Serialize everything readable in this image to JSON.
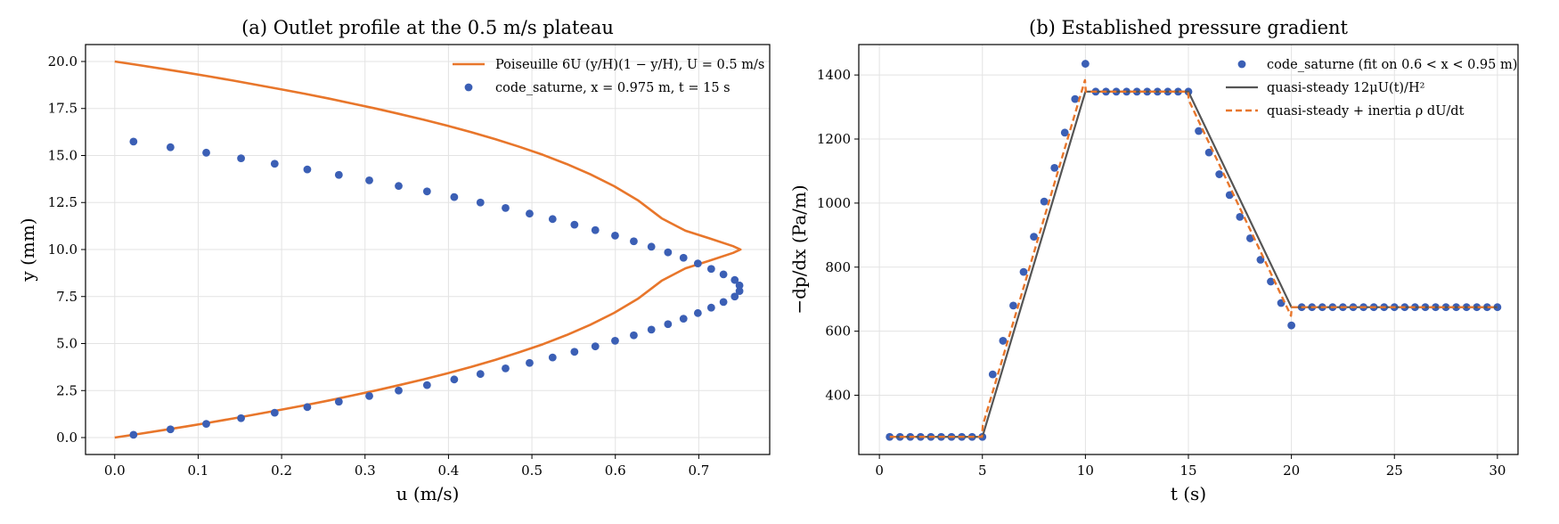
{
  "chart_data": [
    {
      "type": "line",
      "title": "(a) Outlet profile at the 0.5 m/s plateau",
      "xlabel": "u (m/s)",
      "ylabel": "y (mm)",
      "xlim": [
        -0.035,
        0.785
      ],
      "ylim": [
        -0.9,
        20.9
      ],
      "xticks": [
        0.0,
        0.1,
        0.2,
        0.3,
        0.4,
        0.5,
        0.6,
        0.7
      ],
      "xtick_labels": [
        "0.0",
        "0.1",
        "0.2",
        "0.3",
        "0.4",
        "0.5",
        "0.6",
        "0.7"
      ],
      "yticks": [
        0.0,
        2.5,
        5.0,
        7.5,
        10.0,
        12.5,
        15.0,
        17.5,
        20.0
      ],
      "ytick_labels": [
        "0.0",
        "2.5",
        "5.0",
        "7.5",
        "10.0",
        "12.5",
        "15.0",
        "17.5",
        "20.0"
      ],
      "grid": true,
      "legend_position": "top-right",
      "series": [
        {
          "name": "Poiseuille 6U (y/H)(1 − y/H), U = 0.5 m/s",
          "kind": "line",
          "color": "#e8762b",
          "x": [
            0.0,
            0.0285,
            0.057,
            0.0855,
            0.114,
            0.1425,
            0.171,
            0.1995,
            0.228,
            0.2565,
            0.285,
            0.3135,
            0.342,
            0.3705,
            0.399,
            0.4275,
            0.456,
            0.4845,
            0.513,
            0.5415,
            0.57,
            0.5985,
            0.627,
            0.6555,
            0.684,
            0.7125,
            0.741,
            0.75,
            0.741,
            0.7125,
            0.684,
            0.6555,
            0.627,
            0.5985,
            0.57,
            0.5415,
            0.513,
            0.4845,
            0.456,
            0.4275,
            0.399,
            0.3705,
            0.342,
            0.3135,
            0.285,
            0.2565,
            0.228,
            0.1995,
            0.171,
            0.1425,
            0.114,
            0.0855,
            0.057,
            0.0285,
            0.0
          ],
          "y": [
            0.0,
            0.19,
            0.39,
            0.59,
            0.8,
            1.02,
            1.25,
            1.48,
            1.72,
            1.97,
            2.24,
            2.51,
            2.8,
            3.1,
            3.42,
            3.76,
            4.13,
            4.53,
            4.96,
            5.45,
            6.0,
            6.63,
            7.38,
            8.34,
            9.0,
            9.4,
            9.82,
            10.0,
            10.18,
            10.6,
            11.0,
            11.66,
            12.62,
            13.37,
            14.0,
            14.55,
            15.04,
            15.47,
            15.87,
            16.24,
            16.58,
            16.9,
            17.2,
            17.49,
            17.76,
            18.03,
            18.28,
            18.52,
            18.75,
            18.98,
            19.2,
            19.41,
            19.61,
            19.81,
            20.0
          ]
        },
        {
          "name": "code_saturne, x = 0.975 m, t = 15 s",
          "kind": "scatter",
          "color": "#3b5fb5",
          "x": [
            0.0225,
            0.0668,
            0.1097,
            0.1514,
            0.1917,
            0.2308,
            0.2686,
            0.3051,
            0.3403,
            0.3743,
            0.4069,
            0.4383,
            0.4684,
            0.4972,
            0.5248,
            0.551,
            0.576,
            0.5997,
            0.6221,
            0.6432,
            0.6631,
            0.6817,
            0.6989,
            0.7149,
            0.7296,
            0.7431,
            0.7488,
            0.7488,
            0.7431,
            0.7296,
            0.7149,
            0.6989,
            0.6817,
            0.6631,
            0.6432,
            0.6221,
            0.5997,
            0.576,
            0.551,
            0.5248,
            0.4972,
            0.4684,
            0.4383,
            0.4069,
            0.3743,
            0.3403,
            0.3051,
            0.2686,
            0.2308,
            0.1917,
            0.1514,
            0.1097,
            0.0668,
            0.0225
          ],
          "y": [
            0.15,
            0.44,
            0.73,
            1.03,
            1.32,
            1.62,
            1.91,
            2.21,
            2.5,
            2.79,
            3.09,
            3.38,
            3.68,
            3.97,
            4.26,
            4.56,
            4.85,
            5.15,
            5.44,
            5.74,
            6.03,
            6.32,
            6.62,
            6.91,
            7.21,
            7.5,
            7.79,
            8.09,
            8.38,
            8.68,
            8.97,
            9.26,
            9.56,
            9.85,
            10.15,
            10.44,
            10.74,
            11.03,
            11.32,
            11.62,
            11.91,
            12.21,
            12.5,
            12.79,
            13.09,
            13.38,
            13.68,
            13.97,
            14.26,
            14.56,
            14.85,
            15.15,
            15.44,
            15.74
          ]
        }
      ]
    },
    {
      "type": "line",
      "title": "(b) Established pressure gradient",
      "xlabel": "t (s)",
      "ylabel": "−dp/dx (Pa/m)",
      "xlim": [
        -1.0,
        31.0
      ],
      "ylim": [
        215,
        1495
      ],
      "xticks": [
        0,
        5,
        10,
        15,
        20,
        25,
        30
      ],
      "xtick_labels": [
        "0",
        "5",
        "10",
        "15",
        "20",
        "25",
        "30"
      ],
      "yticks": [
        400,
        600,
        800,
        1000,
        1200,
        1400
      ],
      "ytick_labels": [
        "400",
        "600",
        "800",
        "1000",
        "1200",
        "1400"
      ],
      "grid": true,
      "legend_position": "top-right",
      "series": [
        {
          "name": "code_saturne (fit on 0.6 < x < 0.95 m)",
          "kind": "scatter",
          "color": "#3b5fb5",
          "x": [
            0.5,
            1.0,
            1.5,
            2.0,
            2.5,
            3.0,
            3.5,
            4.0,
            4.5,
            5.0,
            5.5,
            6.0,
            6.5,
            7.0,
            7.5,
            8.0,
            8.5,
            9.0,
            9.5,
            10.0,
            10.5,
            11.0,
            11.5,
            12.0,
            12.5,
            13.0,
            13.5,
            14.0,
            14.5,
            15.0,
            15.5,
            16.0,
            16.5,
            17.0,
            17.5,
            18.0,
            18.5,
            19.0,
            19.5,
            20.0,
            20.5,
            21.0,
            21.5,
            22.0,
            22.5,
            23.0,
            23.5,
            24.0,
            24.5,
            25.0,
            25.5,
            26.0,
            26.5,
            27.0,
            27.5,
            28.0,
            28.5,
            29.0,
            29.5,
            30.0
          ],
          "y": [
            270,
            270,
            270,
            270,
            270,
            270,
            270,
            270,
            270,
            270,
            465,
            570,
            680,
            785,
            895,
            1005,
            1110,
            1220,
            1325,
            1435,
            1348,
            1348,
            1348,
            1348,
            1348,
            1348,
            1348,
            1348,
            1348,
            1348,
            1225,
            1158,
            1090,
            1025,
            957,
            890,
            823,
            755,
            688,
            618,
            675,
            675,
            675,
            675,
            675,
            675,
            675,
            675,
            675,
            675,
            675,
            675,
            675,
            675,
            675,
            675,
            675,
            675,
            675,
            675
          ]
        },
        {
          "name": "quasi-steady 12μU(t)/H²",
          "kind": "line",
          "color": "#555555",
          "x": [
            0.5,
            5.0,
            10.0,
            15.0,
            20.0,
            30.0
          ],
          "y": [
            270,
            270,
            1348,
            1348,
            675,
            675
          ]
        },
        {
          "name": "quasi-steady + inertia ρ dU/dt",
          "kind": "dashed",
          "color": "#e8762b",
          "x": [
            0.5,
            4.98,
            5.02,
            9.98,
            10.02,
            14.98,
            15.02,
            19.98,
            20.02,
            30.0
          ],
          "y": [
            270,
            270,
            306,
            1384,
            1348,
            1348,
            1321,
            648,
            675,
            675
          ]
        }
      ]
    }
  ]
}
